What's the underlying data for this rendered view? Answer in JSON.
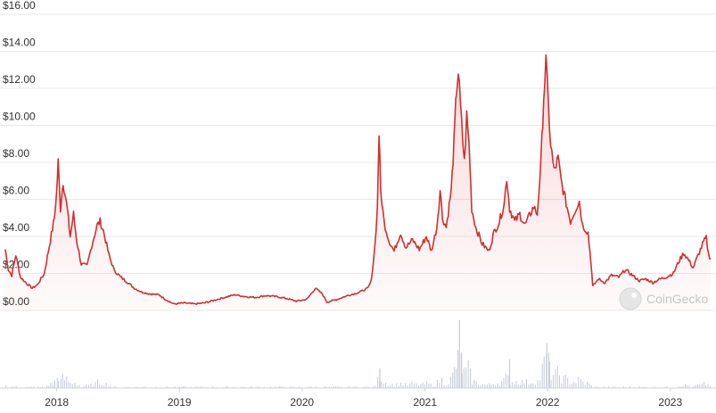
{
  "chart_data": {
    "type": "area",
    "title": "",
    "xlabel": "",
    "ylabel": "",
    "y_ticks": [
      0,
      2,
      4,
      6,
      8,
      10,
      12,
      14,
      16
    ],
    "y_tick_labels": [
      "$0.00",
      "$2.00",
      "$4.00",
      "$6.00",
      "$8.00",
      "$10.00",
      "$12.00",
      "$14.00",
      "$16.00"
    ],
    "ylim": [
      0,
      16
    ],
    "x_tick_labels": [
      "2018",
      "2019",
      "2020",
      "2021",
      "2022",
      "2023"
    ],
    "x_ticks": [
      "2018-01-01",
      "2019-01-01",
      "2020-01-01",
      "2021-01-01",
      "2022-01-01",
      "2023-01-01"
    ],
    "xlim": [
      "2017-08-01",
      "2023-05-01"
    ],
    "grid": true,
    "colors": {
      "line": "#d32f2f",
      "fill": "#fdeaea",
      "volume": "#c5cbd8"
    },
    "series": [
      {
        "values": [
          [
            "2017-08-01",
            3.3
          ],
          [
            "2017-08-10",
            2.2
          ],
          [
            "2017-08-20",
            1.9
          ],
          [
            "2017-09-01",
            3.0
          ],
          [
            "2017-09-15",
            1.8
          ],
          [
            "2017-10-01",
            1.5
          ],
          [
            "2017-10-20",
            1.2
          ],
          [
            "2017-11-05",
            1.4
          ],
          [
            "2017-11-25",
            2.0
          ],
          [
            "2017-12-10",
            3.5
          ],
          [
            "2017-12-25",
            5.0
          ],
          [
            "2018-01-01",
            6.5
          ],
          [
            "2018-01-05",
            8.0
          ],
          [
            "2018-01-12",
            5.5
          ],
          [
            "2018-01-20",
            7.0
          ],
          [
            "2018-02-01",
            5.5
          ],
          [
            "2018-02-10",
            4.0
          ],
          [
            "2018-02-20",
            5.2
          ],
          [
            "2018-03-01",
            3.8
          ],
          [
            "2018-03-15",
            2.5
          ],
          [
            "2018-04-01",
            2.4
          ],
          [
            "2018-04-15",
            3.5
          ],
          [
            "2018-05-01",
            4.6
          ],
          [
            "2018-05-10",
            4.8
          ],
          [
            "2018-05-20",
            4.3
          ],
          [
            "2018-06-05",
            3.0
          ],
          [
            "2018-06-20",
            2.2
          ],
          [
            "2018-07-10",
            1.8
          ],
          [
            "2018-08-01",
            1.5
          ],
          [
            "2018-08-20",
            1.2
          ],
          [
            "2018-09-10",
            1.0
          ],
          [
            "2018-10-01",
            0.9
          ],
          [
            "2018-11-01",
            0.85
          ],
          [
            "2018-11-20",
            0.6
          ],
          [
            "2018-12-15",
            0.35
          ],
          [
            "2019-01-15",
            0.4
          ],
          [
            "2019-02-15",
            0.35
          ],
          [
            "2019-03-15",
            0.4
          ],
          [
            "2019-04-15",
            0.55
          ],
          [
            "2019-05-15",
            0.7
          ],
          [
            "2019-06-15",
            0.85
          ],
          [
            "2019-07-15",
            0.75
          ],
          [
            "2019-08-15",
            0.7
          ],
          [
            "2019-09-15",
            0.8
          ],
          [
            "2019-10-15",
            0.75
          ],
          [
            "2019-11-15",
            0.65
          ],
          [
            "2019-12-15",
            0.5
          ],
          [
            "2020-01-15",
            0.6
          ],
          [
            "2020-02-10",
            1.2
          ],
          [
            "2020-03-01",
            0.9
          ],
          [
            "2020-03-15",
            0.45
          ],
          [
            "2020-04-15",
            0.6
          ],
          [
            "2020-05-15",
            0.8
          ],
          [
            "2020-06-15",
            0.95
          ],
          [
            "2020-07-15",
            1.2
          ],
          [
            "2020-07-25",
            1.6
          ],
          [
            "2020-08-05",
            3.5
          ],
          [
            "2020-08-12",
            5.5
          ],
          [
            "2020-08-17",
            9.6
          ],
          [
            "2020-08-22",
            6.5
          ],
          [
            "2020-09-01",
            4.8
          ],
          [
            "2020-09-15",
            3.8
          ],
          [
            "2020-10-01",
            3.2
          ],
          [
            "2020-10-20",
            4.2
          ],
          [
            "2020-11-05",
            3.4
          ],
          [
            "2020-11-25",
            3.8
          ],
          [
            "2020-12-15",
            3.3
          ],
          [
            "2021-01-05",
            4.0
          ],
          [
            "2021-01-20",
            3.2
          ],
          [
            "2021-02-05",
            4.5
          ],
          [
            "2021-02-15",
            6.5
          ],
          [
            "2021-02-22",
            5.0
          ],
          [
            "2021-03-05",
            4.5
          ],
          [
            "2021-03-20",
            6.5
          ],
          [
            "2021-03-28",
            9.0
          ],
          [
            "2021-04-05",
            12.0
          ],
          [
            "2021-04-10",
            12.9
          ],
          [
            "2021-04-20",
            10.0
          ],
          [
            "2021-04-28",
            8.0
          ],
          [
            "2021-05-05",
            10.5
          ],
          [
            "2021-05-12",
            9.0
          ],
          [
            "2021-05-20",
            5.5
          ],
          [
            "2021-06-01",
            4.5
          ],
          [
            "2021-06-20",
            3.6
          ],
          [
            "2021-07-10",
            3.2
          ],
          [
            "2021-07-25",
            4.2
          ],
          [
            "2021-08-10",
            4.8
          ],
          [
            "2021-08-25",
            5.8
          ],
          [
            "2021-09-01",
            7.2
          ],
          [
            "2021-09-10",
            5.5
          ],
          [
            "2021-09-25",
            4.8
          ],
          [
            "2021-10-10",
            5.2
          ],
          [
            "2021-10-25",
            4.6
          ],
          [
            "2021-11-05",
            5.0
          ],
          [
            "2021-11-20",
            5.6
          ],
          [
            "2021-12-01",
            5.2
          ],
          [
            "2021-12-12",
            8.0
          ],
          [
            "2021-12-20",
            11.5
          ],
          [
            "2021-12-27",
            13.4
          ],
          [
            "2022-01-03",
            11.0
          ],
          [
            "2022-01-10",
            9.0
          ],
          [
            "2022-01-20",
            7.5
          ],
          [
            "2022-02-01",
            8.2
          ],
          [
            "2022-02-10",
            7.0
          ],
          [
            "2022-02-25",
            5.8
          ],
          [
            "2022-03-10",
            4.8
          ],
          [
            "2022-03-25",
            5.5
          ],
          [
            "2022-04-05",
            5.9
          ],
          [
            "2022-04-15",
            4.6
          ],
          [
            "2022-05-01",
            4.2
          ],
          [
            "2022-05-10",
            2.6
          ],
          [
            "2022-05-15",
            1.3
          ],
          [
            "2022-06-01",
            1.7
          ],
          [
            "2022-06-20",
            1.5
          ],
          [
            "2022-07-10",
            1.9
          ],
          [
            "2022-08-01",
            1.8
          ],
          [
            "2022-08-20",
            2.2
          ],
          [
            "2022-09-10",
            1.9
          ],
          [
            "2022-10-01",
            1.6
          ],
          [
            "2022-10-20",
            1.7
          ],
          [
            "2022-11-10",
            1.5
          ],
          [
            "2022-12-01",
            1.7
          ],
          [
            "2022-12-20",
            1.8
          ],
          [
            "2023-01-10",
            2.0
          ],
          [
            "2023-01-25",
            2.6
          ],
          [
            "2023-02-10",
            3.1
          ],
          [
            "2023-02-25",
            2.7
          ],
          [
            "2023-03-10",
            2.3
          ],
          [
            "2023-03-25",
            3.0
          ],
          [
            "2023-04-10",
            3.7
          ],
          [
            "2023-04-18",
            3.9
          ],
          [
            "2023-04-25",
            3.0
          ],
          [
            "2023-05-01",
            2.8
          ]
        ]
      }
    ]
  },
  "watermark": {
    "text": "CoinGecko"
  }
}
